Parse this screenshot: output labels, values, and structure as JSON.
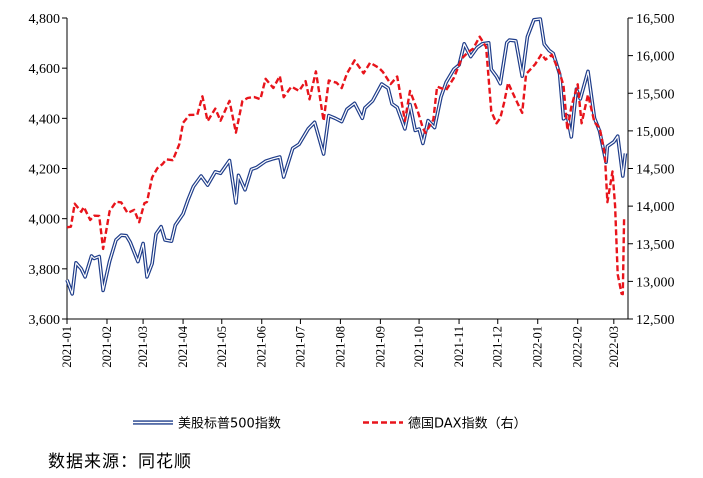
{
  "source": "数据来源：同花顺",
  "chart_data": {
    "type": "line",
    "title": "",
    "xlabel": "",
    "ylabel": "",
    "y_left": {
      "ylim": [
        3600,
        4800
      ],
      "ticks": [
        "3,600",
        "3,800",
        "4,000",
        "4,200",
        "4,400",
        "4,600",
        "4,800"
      ]
    },
    "y_right": {
      "ylim": [
        12500,
        16500
      ],
      "ticks": [
        "12,500",
        "13,000",
        "13,500",
        "14,000",
        "14,500",
        "15,000",
        "15,500",
        "16,000",
        "16,500"
      ]
    },
    "x_ticks": [
      "2021-01",
      "2021-02",
      "2021-03",
      "2021-04",
      "2021-05",
      "2021-06",
      "2021-07",
      "2021-08",
      "2021-09",
      "2021-10",
      "2021-11",
      "2021-12",
      "2022-01",
      "2022-02",
      "2022-03"
    ],
    "grid": false,
    "legend": "bottom",
    "series": [
      {
        "name": "美股标普500指数",
        "axis": "left",
        "color": "#1f3d8a",
        "style": "double",
        "points": [
          [
            "2021-01-01",
            3756
          ],
          [
            "2021-01-05",
            3700
          ],
          [
            "2021-01-08",
            3824
          ],
          [
            "2021-01-12",
            3800
          ],
          [
            "2021-01-15",
            3768
          ],
          [
            "2021-01-20",
            3851
          ],
          [
            "2021-01-22",
            3841
          ],
          [
            "2021-01-26",
            3849
          ],
          [
            "2021-01-29",
            3714
          ],
          [
            "2021-02-03",
            3830
          ],
          [
            "2021-02-08",
            3915
          ],
          [
            "2021-02-12",
            3934
          ],
          [
            "2021-02-16",
            3932
          ],
          [
            "2021-02-19",
            3906
          ],
          [
            "2021-02-25",
            3829
          ],
          [
            "2021-03-01",
            3901
          ],
          [
            "2021-03-04",
            3768
          ],
          [
            "2021-03-08",
            3821
          ],
          [
            "2021-03-11",
            3939
          ],
          [
            "2021-03-15",
            3968
          ],
          [
            "2021-03-18",
            3915
          ],
          [
            "2021-03-23",
            3910
          ],
          [
            "2021-03-26",
            3974
          ],
          [
            "2021-04-01",
            4019
          ],
          [
            "2021-04-05",
            4077
          ],
          [
            "2021-04-09",
            4128
          ],
          [
            "2021-04-15",
            4170
          ],
          [
            "2021-04-20",
            4134
          ],
          [
            "2021-04-26",
            4187
          ],
          [
            "2021-04-30",
            4181
          ],
          [
            "2021-05-07",
            4232
          ],
          [
            "2021-05-12",
            4063
          ],
          [
            "2021-05-14",
            4173
          ],
          [
            "2021-05-19",
            4115
          ],
          [
            "2021-05-24",
            4197
          ],
          [
            "2021-05-28",
            4204
          ],
          [
            "2021-06-04",
            4229
          ],
          [
            "2021-06-10",
            4239
          ],
          [
            "2021-06-15",
            4246
          ],
          [
            "2021-06-18",
            4166
          ],
          [
            "2021-06-25",
            4280
          ],
          [
            "2021-06-30",
            4297
          ],
          [
            "2021-07-07",
            4358
          ],
          [
            "2021-07-12",
            4384
          ],
          [
            "2021-07-19",
            4258
          ],
          [
            "2021-07-23",
            4411
          ],
          [
            "2021-07-28",
            4400
          ],
          [
            "2021-08-02",
            4387
          ],
          [
            "2021-08-06",
            4436
          ],
          [
            "2021-08-12",
            4460
          ],
          [
            "2021-08-18",
            4400
          ],
          [
            "2021-08-20",
            4441
          ],
          [
            "2021-08-26",
            4470
          ],
          [
            "2021-09-02",
            4537
          ],
          [
            "2021-09-07",
            4520
          ],
          [
            "2021-09-10",
            4458
          ],
          [
            "2021-09-14",
            4443
          ],
          [
            "2021-09-20",
            4358
          ],
          [
            "2021-09-24",
            4455
          ],
          [
            "2021-09-28",
            4352
          ],
          [
            "2021-10-01",
            4357
          ],
          [
            "2021-10-04",
            4300
          ],
          [
            "2021-10-08",
            4391
          ],
          [
            "2021-10-13",
            4363
          ],
          [
            "2021-10-18",
            4486
          ],
          [
            "2021-10-22",
            4544
          ],
          [
            "2021-10-28",
            4596
          ],
          [
            "2021-11-01",
            4613
          ],
          [
            "2021-11-05",
            4697
          ],
          [
            "2021-11-10",
            4646
          ],
          [
            "2021-11-15",
            4682
          ],
          [
            "2021-11-19",
            4697
          ],
          [
            "2021-11-24",
            4701
          ],
          [
            "2021-11-26",
            4595
          ],
          [
            "2021-11-30",
            4567
          ],
          [
            "2021-12-03",
            4538
          ],
          [
            "2021-12-08",
            4701
          ],
          [
            "2021-12-10",
            4712
          ],
          [
            "2021-12-15",
            4709
          ],
          [
            "2021-12-20",
            4568
          ],
          [
            "2021-12-24",
            4725
          ],
          [
            "2021-12-29",
            4793
          ],
          [
            "2022-01-03",
            4796
          ],
          [
            "2022-01-06",
            4696
          ],
          [
            "2022-01-10",
            4670
          ],
          [
            "2022-01-13",
            4659
          ],
          [
            "2022-01-18",
            4577
          ],
          [
            "2022-01-21",
            4398
          ],
          [
            "2022-01-24",
            4410
          ],
          [
            "2022-01-27",
            4326
          ],
          [
            "2022-01-31",
            4516
          ],
          [
            "2022-02-03",
            4477
          ],
          [
            "2022-02-09",
            4587
          ],
          [
            "2022-02-14",
            4401
          ],
          [
            "2022-02-18",
            4349
          ],
          [
            "2022-02-23",
            4225
          ],
          [
            "2022-02-24",
            4288
          ],
          [
            "2022-03-01",
            4306
          ],
          [
            "2022-03-04",
            4329
          ],
          [
            "2022-03-08",
            4170
          ],
          [
            "2022-03-10",
            4260
          ]
        ]
      },
      {
        "name": "德国DAX指数（右）",
        "axis": "right",
        "color": "#e8141b",
        "style": "dashed",
        "points": [
          [
            "2021-01-01",
            13718
          ],
          [
            "2021-01-04",
            13726
          ],
          [
            "2021-01-07",
            14032
          ],
          [
            "2021-01-12",
            13925
          ],
          [
            "2021-01-14",
            13988
          ],
          [
            "2021-01-19",
            13815
          ],
          [
            "2021-01-22",
            13873
          ],
          [
            "2021-01-26",
            13870
          ],
          [
            "2021-01-29",
            13432
          ],
          [
            "2021-02-03",
            13933
          ],
          [
            "2021-02-08",
            14059
          ],
          [
            "2021-02-12",
            14050
          ],
          [
            "2021-02-17",
            13909
          ],
          [
            "2021-02-22",
            13950
          ],
          [
            "2021-02-26",
            13786
          ],
          [
            "2021-03-02",
            14039
          ],
          [
            "2021-03-04",
            14056
          ],
          [
            "2021-03-08",
            14380
          ],
          [
            "2021-03-12",
            14502
          ],
          [
            "2021-03-16",
            14557
          ],
          [
            "2021-03-19",
            14621
          ],
          [
            "2021-03-24",
            14610
          ],
          [
            "2021-03-29",
            14817
          ],
          [
            "2021-04-01",
            15107
          ],
          [
            "2021-04-06",
            15212
          ],
          [
            "2021-04-12",
            15215
          ],
          [
            "2021-04-16",
            15459
          ],
          [
            "2021-04-20",
            15130
          ],
          [
            "2021-04-26",
            15296
          ],
          [
            "2021-04-30",
            15135
          ],
          [
            "2021-05-07",
            15399
          ],
          [
            "2021-05-12",
            14977
          ],
          [
            "2021-05-17",
            15397
          ],
          [
            "2021-05-21",
            15437
          ],
          [
            "2021-05-26",
            15450
          ],
          [
            "2021-05-31",
            15421
          ],
          [
            "2021-06-04",
            15692
          ],
          [
            "2021-06-10",
            15570
          ],
          [
            "2021-06-15",
            15729
          ],
          [
            "2021-06-18",
            15448
          ],
          [
            "2021-06-24",
            15589
          ],
          [
            "2021-06-30",
            15531
          ],
          [
            "2021-07-05",
            15661
          ],
          [
            "2021-07-08",
            15420
          ],
          [
            "2021-07-13",
            15790
          ],
          [
            "2021-07-19",
            15133
          ],
          [
            "2021-07-23",
            15669
          ],
          [
            "2021-07-29",
            15640
          ],
          [
            "2021-08-02",
            15568
          ],
          [
            "2021-08-06",
            15761
          ],
          [
            "2021-08-12",
            15937
          ],
          [
            "2021-08-19",
            15765
          ],
          [
            "2021-08-24",
            15906
          ],
          [
            "2021-08-31",
            15835
          ],
          [
            "2021-09-03",
            15781
          ],
          [
            "2021-09-09",
            15623
          ],
          [
            "2021-09-14",
            15722
          ],
          [
            "2021-09-20",
            15132
          ],
          [
            "2021-09-24",
            15531
          ],
          [
            "2021-09-30",
            15260
          ],
          [
            "2021-10-04",
            15036
          ],
          [
            "2021-10-06",
            14973
          ],
          [
            "2021-10-12",
            15146
          ],
          [
            "2021-10-15",
            15587
          ],
          [
            "2021-10-22",
            15543
          ],
          [
            "2021-10-28",
            15705
          ],
          [
            "2021-11-03",
            15959
          ],
          [
            "2021-11-08",
            16046
          ],
          [
            "2021-11-12",
            16094
          ],
          [
            "2021-11-17",
            16251
          ],
          [
            "2021-11-22",
            16115
          ],
          [
            "2021-11-26",
            15257
          ],
          [
            "2021-11-30",
            15100
          ],
          [
            "2021-12-03",
            15170
          ],
          [
            "2021-12-06",
            15380
          ],
          [
            "2021-12-09",
            15639
          ],
          [
            "2021-12-14",
            15453
          ],
          [
            "2021-12-20",
            15239
          ],
          [
            "2021-12-23",
            15756
          ],
          [
            "2021-12-30",
            15885
          ],
          [
            "2022-01-04",
            16020
          ],
          [
            "2022-01-07",
            15947
          ],
          [
            "2022-01-12",
            16011
          ],
          [
            "2022-01-18",
            15772
          ],
          [
            "2022-01-21",
            15603
          ],
          [
            "2022-01-24",
            15011
          ],
          [
            "2022-01-27",
            15319
          ],
          [
            "2022-02-01",
            15619
          ],
          [
            "2022-02-04",
            15100
          ],
          [
            "2022-02-09",
            15482
          ],
          [
            "2022-02-14",
            15113
          ],
          [
            "2022-02-18",
            15042
          ],
          [
            "2022-02-22",
            14693
          ],
          [
            "2022-02-24",
            14052
          ],
          [
            "2022-02-28",
            14461
          ],
          [
            "2022-03-02",
            14000
          ],
          [
            "2022-03-04",
            13094
          ],
          [
            "2022-03-07",
            12835
          ],
          [
            "2022-03-08",
            12831
          ],
          [
            "2022-03-09",
            13848
          ]
        ]
      }
    ]
  }
}
